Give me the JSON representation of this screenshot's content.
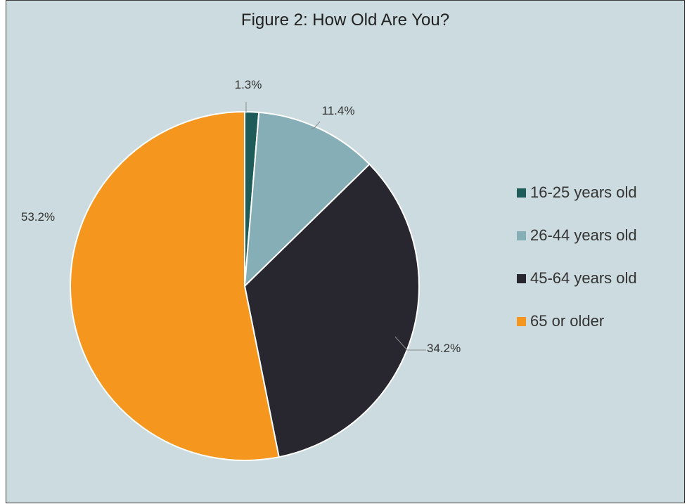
{
  "chart_data": {
    "type": "pie",
    "title": "Figure 2: How Old Are You?",
    "categories": [
      "16-25 years old",
      "26-44 years old",
      "45-64 years old",
      "65 or older"
    ],
    "values": [
      1.3,
      11.4,
      34.2,
      53.2
    ],
    "value_labels": [
      "1.3%",
      "11.4%",
      "34.2%",
      "53.2%"
    ],
    "colors": [
      "#1e5c5a",
      "#86aeb6",
      "#28262f",
      "#f5961f"
    ],
    "background_color": "#ccdbdf",
    "legend_position": "right",
    "start_angle": "top, clockwise"
  }
}
